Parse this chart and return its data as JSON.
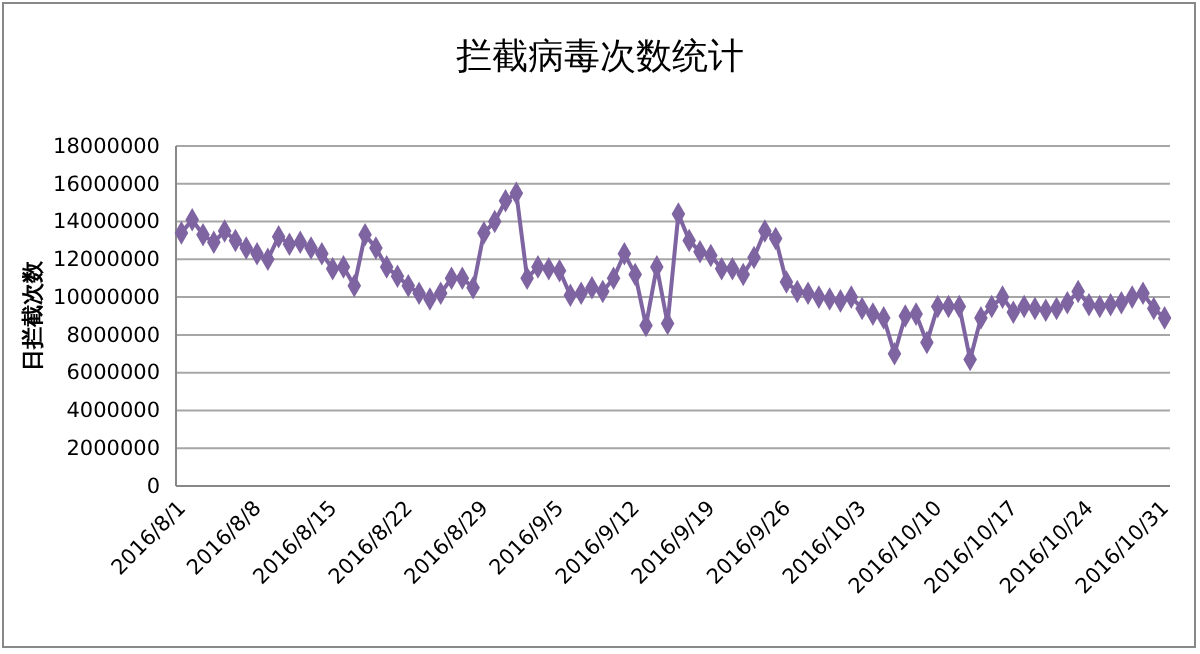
{
  "chart_data": {
    "type": "line",
    "title": "拦截病毒次数统计",
    "ylabel": "日拦截次数",
    "categories": [
      "2016/8/1",
      null,
      null,
      null,
      null,
      null,
      null,
      "2016/8/8",
      null,
      null,
      null,
      null,
      null,
      null,
      "2016/8/15",
      null,
      null,
      null,
      null,
      null,
      null,
      "2016/8/22",
      null,
      null,
      null,
      null,
      null,
      null,
      "2016/8/29",
      null,
      null,
      null,
      null,
      null,
      null,
      "2016/9/5",
      null,
      null,
      null,
      null,
      null,
      null,
      "2016/9/12",
      null,
      null,
      null,
      null,
      null,
      null,
      "2016/9/19",
      null,
      null,
      null,
      null,
      null,
      null,
      "2016/9/26",
      null,
      null,
      null,
      null,
      null,
      null,
      "2016/10/3",
      null,
      null,
      null,
      null,
      null,
      null,
      "2016/10/10",
      null,
      null,
      null,
      null,
      null,
      null,
      "2016/10/17",
      null,
      null,
      null,
      null,
      null,
      null,
      "2016/10/24",
      null,
      null,
      null,
      null,
      null,
      null,
      "2016/10/31"
    ],
    "series": [
      {
        "color": "#7f64a2",
        "values": [
          13400000,
          14100000,
          13300000,
          12900000,
          13500000,
          13000000,
          12600000,
          12300000,
          12000000,
          13200000,
          12800000,
          12900000,
          12600000,
          12300000,
          11500000,
          11600000,
          10600000,
          13300000,
          12600000,
          11600000,
          11100000,
          10600000,
          10200000,
          9900000,
          10200000,
          11000000,
          11000000,
          10500000,
          13400000,
          14000000,
          15100000,
          15500000,
          11000000,
          11600000,
          11500000,
          11400000,
          10100000,
          10200000,
          10500000,
          10300000,
          11000000,
          12300000,
          11200000,
          8500000,
          11600000,
          8600000,
          14400000,
          13000000,
          12400000,
          12200000,
          11500000,
          11500000,
          11200000,
          12100000,
          13500000,
          13100000,
          10800000,
          10300000,
          10200000,
          10000000,
          9900000,
          9800000,
          10000000,
          9400000,
          9100000,
          8900000,
          7000000,
          9000000,
          9100000,
          7600000,
          9500000,
          9500000,
          9500000,
          6700000,
          8900000,
          9500000,
          10000000,
          9200000,
          9500000,
          9400000,
          9300000,
          9400000,
          9700000,
          10300000,
          9600000,
          9500000,
          9600000,
          9700000,
          10000000,
          10200000,
          9400000,
          8900000
        ]
      }
    ],
    "ylim": [
      0,
      18000000
    ],
    "yticks": [
      0,
      2000000,
      4000000,
      6000000,
      8000000,
      10000000,
      12000000,
      14000000,
      16000000,
      18000000
    ],
    "grid": "y",
    "marker": "diamond",
    "line_style": "solid",
    "legend": false
  }
}
